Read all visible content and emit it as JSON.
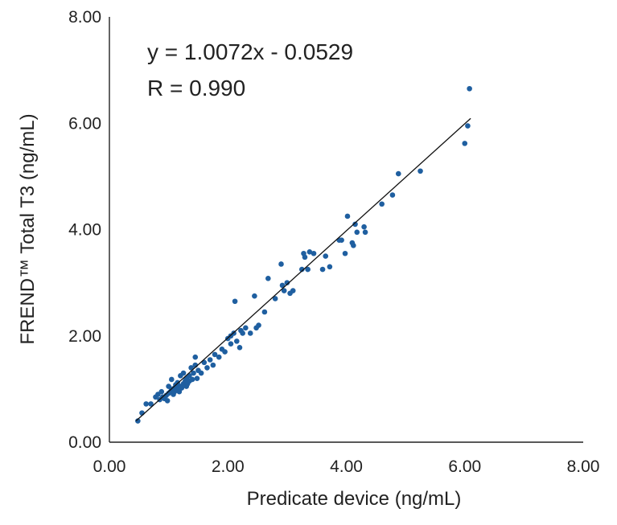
{
  "chart_data": {
    "type": "scatter",
    "xlabel": "Predicate device (ng/mL)",
    "ylabel": "FREND™ Total T3 (ng/mL)",
    "xlim": [
      0,
      8
    ],
    "ylim": [
      0,
      8
    ],
    "x_ticks": [
      "0.00",
      "2.00",
      "4.00",
      "6.00",
      "8.00"
    ],
    "y_ticks": [
      "0.00",
      "2.00",
      "4.00",
      "6.00",
      "8.00"
    ],
    "grid": false,
    "legend": "none",
    "point_color": "#1f5fa0",
    "annotations": {
      "equation": "y = 1.0072x - 0.0529",
      "r_value": "R = 0.990"
    },
    "trendline": {
      "slope": 1.0072,
      "intercept": -0.0529,
      "x_range": [
        0.45,
        6.1
      ]
    },
    "points": [
      [
        0.48,
        0.4
      ],
      [
        0.55,
        0.55
      ],
      [
        0.62,
        0.72
      ],
      [
        0.7,
        0.72
      ],
      [
        0.78,
        0.85
      ],
      [
        0.82,
        0.9
      ],
      [
        0.85,
        0.8
      ],
      [
        0.88,
        0.95
      ],
      [
        0.9,
        0.85
      ],
      [
        0.93,
        0.82
      ],
      [
        0.96,
        0.88
      ],
      [
        0.98,
        0.78
      ],
      [
        1.0,
        0.92
      ],
      [
        1.0,
        1.05
      ],
      [
        1.03,
        0.95
      ],
      [
        1.05,
        1.0
      ],
      [
        1.05,
        1.18
      ],
      [
        1.08,
        0.9
      ],
      [
        1.1,
        1.02
      ],
      [
        1.1,
        0.95
      ],
      [
        1.12,
        1.08
      ],
      [
        1.13,
        0.98
      ],
      [
        1.15,
        1.05
      ],
      [
        1.15,
        1.12
      ],
      [
        1.18,
        0.95
      ],
      [
        1.18,
        1.0
      ],
      [
        1.2,
        1.05
      ],
      [
        1.2,
        1.25
      ],
      [
        1.22,
        1.02
      ],
      [
        1.25,
        1.1
      ],
      [
        1.25,
        1.3
      ],
      [
        1.28,
        1.15
      ],
      [
        1.3,
        1.05
      ],
      [
        1.3,
        1.2
      ],
      [
        1.32,
        1.1
      ],
      [
        1.35,
        1.25
      ],
      [
        1.35,
        1.15
      ],
      [
        1.38,
        1.4
      ],
      [
        1.4,
        1.18
      ],
      [
        1.42,
        1.3
      ],
      [
        1.45,
        1.45
      ],
      [
        1.45,
        1.6
      ],
      [
        1.48,
        1.2
      ],
      [
        1.5,
        1.35
      ],
      [
        1.55,
        1.3
      ],
      [
        1.6,
        1.5
      ],
      [
        1.65,
        1.4
      ],
      [
        1.7,
        1.55
      ],
      [
        1.75,
        1.45
      ],
      [
        1.78,
        1.65
      ],
      [
        1.85,
        1.6
      ],
      [
        1.9,
        1.75
      ],
      [
        1.95,
        1.7
      ],
      [
        2.0,
        1.95
      ],
      [
        2.05,
        1.85
      ],
      [
        2.05,
        2.0
      ],
      [
        2.1,
        2.05
      ],
      [
        2.12,
        2.65
      ],
      [
        2.15,
        1.9
      ],
      [
        2.2,
        1.78
      ],
      [
        2.22,
        2.1
      ],
      [
        2.25,
        2.05
      ],
      [
        2.3,
        2.15
      ],
      [
        2.38,
        2.05
      ],
      [
        2.45,
        2.75
      ],
      [
        2.48,
        2.15
      ],
      [
        2.52,
        2.2
      ],
      [
        2.62,
        2.45
      ],
      [
        2.68,
        3.08
      ],
      [
        2.8,
        2.7
      ],
      [
        2.9,
        3.35
      ],
      [
        2.92,
        2.95
      ],
      [
        2.95,
        2.85
      ],
      [
        3.0,
        3.0
      ],
      [
        3.05,
        2.8
      ],
      [
        3.1,
        2.85
      ],
      [
        3.25,
        3.25
      ],
      [
        3.28,
        3.55
      ],
      [
        3.3,
        3.48
      ],
      [
        3.35,
        3.25
      ],
      [
        3.38,
        3.58
      ],
      [
        3.45,
        3.55
      ],
      [
        3.6,
        3.25
      ],
      [
        3.65,
        3.5
      ],
      [
        3.72,
        3.3
      ],
      [
        3.88,
        3.8
      ],
      [
        3.92,
        3.8
      ],
      [
        3.98,
        3.55
      ],
      [
        4.02,
        4.25
      ],
      [
        4.1,
        3.75
      ],
      [
        4.12,
        3.7
      ],
      [
        4.15,
        4.1
      ],
      [
        4.18,
        3.95
      ],
      [
        4.3,
        4.05
      ],
      [
        4.32,
        3.95
      ],
      [
        4.6,
        4.48
      ],
      [
        4.78,
        4.65
      ],
      [
        4.88,
        5.05
      ],
      [
        5.25,
        5.1
      ],
      [
        6.0,
        5.62
      ],
      [
        6.05,
        5.95
      ],
      [
        6.08,
        6.65
      ]
    ]
  }
}
